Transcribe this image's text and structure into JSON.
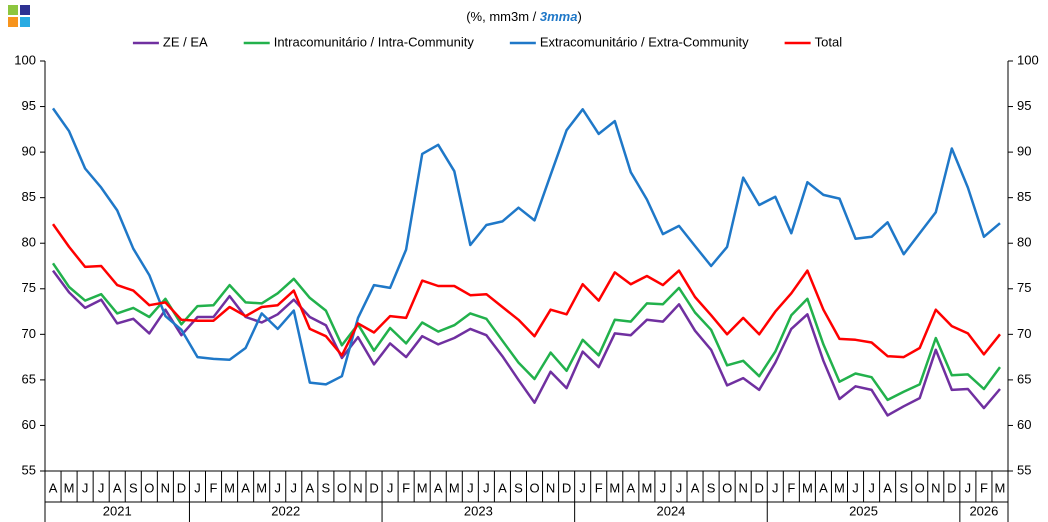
{
  "chart_data": {
    "type": "line",
    "subtitle": [
      "(%, mm3m / ",
      "3mma",
      ")"
    ],
    "categories": [
      "A",
      "M",
      "J",
      "J",
      "A",
      "S",
      "O",
      "N",
      "D",
      "J",
      "F",
      "M",
      "A",
      "M",
      "J",
      "J",
      "A",
      "S",
      "O",
      "N",
      "D",
      "J",
      "F",
      "M",
      "A",
      "M",
      "J",
      "J",
      "A",
      "S",
      "O",
      "N",
      "D",
      "J",
      "F",
      "M",
      "A",
      "M",
      "J",
      "J",
      "A",
      "S",
      "O",
      "N",
      "D",
      "J",
      "F",
      "M",
      "A",
      "M",
      "J",
      "J",
      "A",
      "S",
      "O",
      "N",
      "D",
      "J",
      "F",
      "M"
    ],
    "years": [
      "2021",
      "2022",
      "2023",
      "2024",
      "2025",
      "2026"
    ],
    "ylim": [
      55,
      100
    ],
    "yticks": [
      55,
      60,
      65,
      70,
      75,
      80,
      85,
      90,
      95,
      100
    ],
    "series": [
      {
        "name": "ZE / EA",
        "color": "#7030a0",
        "values": [
          77.0,
          74.6,
          72.9,
          73.8,
          71.2,
          71.7,
          70.1,
          72.7,
          69.9,
          71.9,
          71.9,
          74.2,
          71.9,
          71.3,
          72.2,
          73.8,
          71.9,
          71.0,
          67.4,
          69.7,
          66.7,
          69.0,
          67.5,
          69.8,
          68.9,
          69.6,
          70.6,
          69.9,
          67.6,
          65.0,
          62.5,
          65.9,
          64.1,
          68.1,
          66.4,
          70.1,
          69.9,
          71.6,
          71.4,
          73.3,
          70.4,
          68.3,
          64.4,
          65.2,
          63.9,
          66.9,
          70.6,
          72.2,
          67.1,
          62.9,
          64.3,
          63.9,
          61.1,
          62.1,
          63.0,
          68.3,
          63.9,
          64.0,
          61.9,
          64.0
        ]
      },
      {
        "name": "Intracomunitário / Intra-Community",
        "color": "#22b14c",
        "values": [
          77.8,
          75.2,
          73.7,
          74.4,
          72.3,
          72.9,
          71.9,
          73.9,
          71.1,
          73.1,
          73.2,
          75.4,
          73.5,
          73.4,
          74.5,
          76.1,
          74.0,
          72.6,
          68.8,
          71.1,
          68.2,
          70.7,
          69.0,
          71.3,
          70.3,
          71.0,
          72.3,
          71.7,
          69.3,
          66.9,
          65.1,
          68.0,
          66.0,
          69.4,
          67.7,
          71.6,
          71.4,
          73.4,
          73.3,
          75.1,
          72.4,
          70.5,
          66.6,
          67.1,
          65.4,
          68.1,
          72.1,
          73.9,
          68.9,
          64.8,
          65.7,
          65.3,
          62.8,
          63.7,
          64.5,
          69.6,
          65.5,
          65.6,
          64.0,
          66.4
        ]
      },
      {
        "name": "Extracomunitário / Extra-Community",
        "color": "#1f78c8",
        "values": [
          94.8,
          92.3,
          88.2,
          86.1,
          83.6,
          79.4,
          76.5,
          72.0,
          70.5,
          67.5,
          67.3,
          67.2,
          68.5,
          72.3,
          70.6,
          72.6,
          64.7,
          64.5,
          65.4,
          71.8,
          75.4,
          75.1,
          79.3,
          89.8,
          90.8,
          87.9,
          79.8,
          82.0,
          82.4,
          83.9,
          82.5,
          87.5,
          92.4,
          94.7,
          92.0,
          93.4,
          87.8,
          84.8,
          81.0,
          81.9,
          79.7,
          77.5,
          79.6,
          87.2,
          84.2,
          85.1,
          81.1,
          86.7,
          85.3,
          84.9,
          80.5,
          80.7,
          82.3,
          78.8,
          81.1,
          83.4,
          90.4,
          86.1,
          80.7,
          82.2
        ]
      },
      {
        "name": "Total",
        "color": "#ff0000",
        "values": [
          82.1,
          79.6,
          77.4,
          77.5,
          75.4,
          74.8,
          73.2,
          73.5,
          71.6,
          71.5,
          71.5,
          73.0,
          72.0,
          73.0,
          73.2,
          74.8,
          70.6,
          69.8,
          67.7,
          71.2,
          70.2,
          72.0,
          71.8,
          75.9,
          75.3,
          75.3,
          74.3,
          74.4,
          73.0,
          71.6,
          69.8,
          72.7,
          72.2,
          75.5,
          73.7,
          76.8,
          75.5,
          76.4,
          75.4,
          77.0,
          74.1,
          72.1,
          70.0,
          71.8,
          70.0,
          72.5,
          74.5,
          77.0,
          72.7,
          69.5,
          69.4,
          69.1,
          67.6,
          67.5,
          68.5,
          72.7,
          70.9,
          70.1,
          67.8,
          70.0
        ]
      }
    ]
  }
}
